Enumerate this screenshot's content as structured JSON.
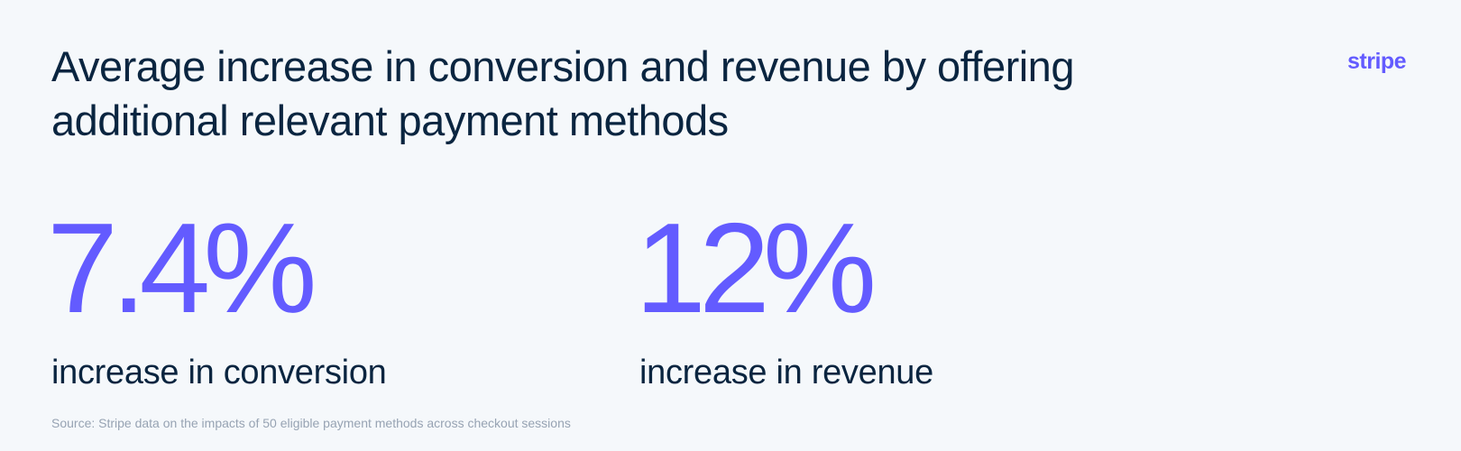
{
  "header": {
    "title": "Average increase in conversion and revenue by offering additional relevant payment methods",
    "logo": "stripe"
  },
  "stats": [
    {
      "value": "7.4%",
      "label": "increase in conversion"
    },
    {
      "value": "12%",
      "label": "increase in revenue"
    }
  ],
  "footer": {
    "source": "Source: Stripe data on the impacts of 50 eligible payment methods across checkout sessions"
  }
}
